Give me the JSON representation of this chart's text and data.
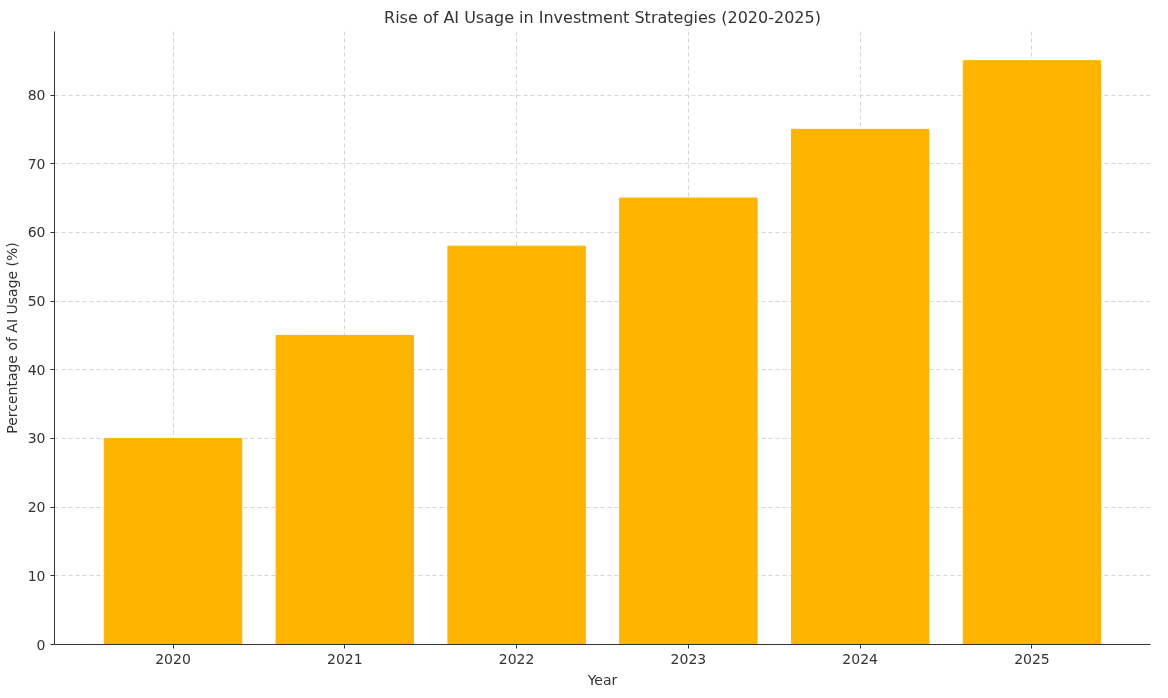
{
  "chart_data": {
    "type": "bar",
    "title": "Rise of AI Usage in Investment Strategies (2020-2025)",
    "xlabel": "Year",
    "ylabel": "Percentage of AI Usage (%)",
    "categories": [
      "2020",
      "2021",
      "2022",
      "2023",
      "2024",
      "2025"
    ],
    "values": [
      30,
      45,
      58,
      65,
      75,
      85
    ],
    "color": "#ffb400",
    "ylim": [
      0,
      89.25
    ],
    "yticks": [
      0,
      10,
      20,
      30,
      40,
      50,
      60,
      70,
      80
    ],
    "grid": true
  }
}
